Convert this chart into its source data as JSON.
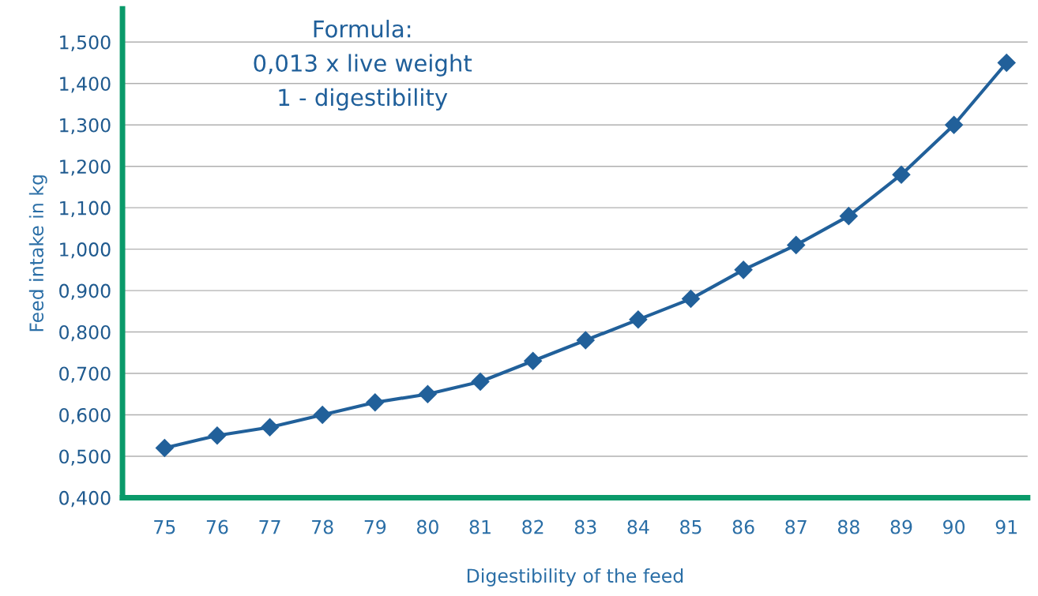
{
  "chart_data": {
    "type": "line",
    "xlabel": "Digestibility of the feed",
    "ylabel": "Feed intake in kg",
    "categories": [
      "75",
      "76",
      "77",
      "78",
      "79",
      "80",
      "81",
      "82",
      "83",
      "84",
      "85",
      "86",
      "87",
      "88",
      "89",
      "90",
      "91"
    ],
    "series": [
      {
        "color": "#21609a",
        "values": [
          0.52,
          0.55,
          0.57,
          0.6,
          0.63,
          0.65,
          0.68,
          0.73,
          0.78,
          0.83,
          0.88,
          0.95,
          1.01,
          1.08,
          1.18,
          1.3,
          1.45
        ]
      }
    ],
    "ylim": [
      0.4,
      1.58
    ],
    "yticks": [
      {
        "value": 0.4,
        "label": "0,400"
      },
      {
        "value": 0.5,
        "label": "0,500"
      },
      {
        "value": 0.6,
        "label": "0,600"
      },
      {
        "value": 0.7,
        "label": "0,700"
      },
      {
        "value": 0.8,
        "label": "0,800"
      },
      {
        "value": 0.9,
        "label": "0,900"
      },
      {
        "value": 1.0,
        "label": "1,000"
      },
      {
        "value": 1.1,
        "label": "1,100"
      },
      {
        "value": 1.2,
        "label": "1,200"
      },
      {
        "value": 1.3,
        "label": "1,300"
      },
      {
        "value": 1.4,
        "label": "1,400"
      },
      {
        "value": 1.5,
        "label": "1,500"
      }
    ],
    "grid": "y",
    "marker": "diamond",
    "line_style": "solid",
    "legend": false,
    "annotations": [
      "Formula:",
      "0,013 x live weight",
      "1 - digestibility"
    ]
  }
}
